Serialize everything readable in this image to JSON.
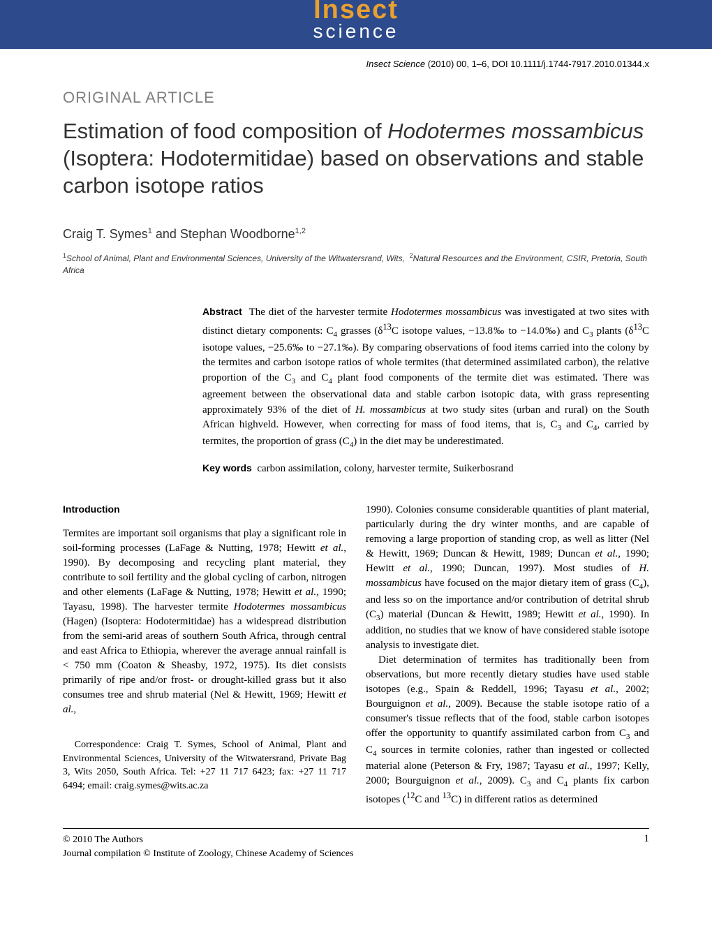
{
  "header": {
    "logo_top": "Insect",
    "logo_bottom": "science",
    "citation_journal": "Insect Science",
    "citation_year": "(2010) 00, 1–6, DOI 10.1111/j.1744-7917.2010.01344.x"
  },
  "article": {
    "type": "ORIGINAL ARTICLE",
    "title_pre": "Estimation of food composition of ",
    "title_species": "Hodotermes mossambicus",
    "title_post": " (Isoptera: Hodotermitidae) based on observations and stable carbon isotope ratios",
    "authors_html": "Craig T. Symes<sup>1</sup> and Stephan Woodborne<sup>1,2</sup>",
    "affiliations_html": "<sup>1</sup>School of Animal, Plant and Environmental Sciences, University of the Witwatersrand, Wits, &nbsp;<sup>2</sup>Natural Resources and the Environment, CSIR, Pretoria, South Africa"
  },
  "abstract": {
    "label": "Abstract",
    "text": "The diet of the harvester termite <span class=\"species-inline\">Hodotermes mossambicus</span> was investigated at two sites with distinct dietary components: C<sub>4</sub> grasses (δ<sup>13</sup>C isotope values, −13.8‰ to −14.0‰) and C<sub>3</sub> plants (δ<sup>13</sup>C isotope values, −25.6‰ to −27.1‰). By comparing observations of food items carried into the colony by the termites and carbon isotope ratios of whole termites (that determined assimilated carbon), the relative proportion of the C<sub>3</sub> and C<sub>4</sub> plant food components of the termite diet was estimated. There was agreement between the observational data and stable carbon isotopic data, with grass representing approximately 93% of the diet of <span class=\"species-inline\">H. mossambicus</span> at two study sites (urban and rural) on the South African highveld. However, when correcting for mass of food items, that is, C<sub>3</sub> and C<sub>4</sub>, carried by termites, the proportion of grass (C<sub>4</sub>) in the diet may be underestimated."
  },
  "keywords": {
    "label": "Key words",
    "text": "carbon assimilation, colony, harvester termite, Suikerbosrand"
  },
  "body": {
    "intro_heading": "Introduction",
    "col1_p1": "Termites are important soil organisms that play a significant role in soil-forming processes (LaFage & Nutting, 1978; Hewitt <span class=\"species-inline\">et al.</span>, 1990). By decomposing and recycling plant material, they contribute to soil fertility and the global cycling of carbon, nitrogen and other elements (LaFage & Nutting, 1978; Hewitt <span class=\"species-inline\">et al.</span>, 1990; Tayasu, 1998). The harvester termite <span class=\"species-inline\">Hodotermes mossambicus</span> (Hagen) (Isoptera: Hodotermitidae) has a widespread distribution from the semi-arid areas of southern South Africa, through central and east Africa to Ethiopia, wherever the average annual rainfall is < 750 mm (Coaton & Sheasby, 1972, 1975). Its diet consists primarily of ripe and/or frost- or drought-killed grass but it also consumes tree and shrub material (Nel & Hewitt, 1969; Hewitt <span class=\"species-inline\">et al.</span>,",
    "col2_p1": "1990). Colonies consume considerable quantities of plant material, particularly during the dry winter months, and are capable of removing a large proportion of standing crop, as well as litter (Nel & Hewitt, 1969; Duncan & Hewitt, 1989; Duncan <span class=\"species-inline\">et al.</span>, 1990; Hewitt <span class=\"species-inline\">et al.</span>, 1990; Duncan, 1997). Most studies of <span class=\"species-inline\">H. mossambicus</span> have focused on the major dietary item of grass (C<sub>4</sub>), and less so on the importance and/or contribution of detrital shrub (C<sub>3</sub>) material (Duncan & Hewitt, 1989; Hewitt <span class=\"species-inline\">et al.</span>, 1990). In addition, no studies that we know of have considered stable isotope analysis to investigate diet.",
    "col2_p2": "Diet determination of termites has traditionally been from observations, but more recently dietary studies have used stable isotopes (e.g., Spain & Reddell, 1996; Tayasu <span class=\"species-inline\">et al.</span>, 2002; Bourguignon <span class=\"species-inline\">et al.</span>, 2009). Because the stable isotope ratio of a consumer's tissue reflects that of the food, stable carbon isotopes offer the opportunity to quantify assimilated carbon from C<sub>3</sub> and C<sub>4</sub> sources in termite colonies, rather than ingested or collected material alone (Peterson & Fry, 1987; Tayasu <span class=\"species-inline\">et al.</span>, 1997; Kelly, 2000; Bourguignon <span class=\"species-inline\">et al.</span>, 2009). C<sub>3</sub> and C<sub>4</sub> plants fix carbon isotopes (<sup>12</sup>C and <sup>13</sup>C) in different ratios as determined"
  },
  "correspondence": "Correspondence: Craig T. Symes, School of Animal, Plant and Environmental Sciences, University of the Witwatersrand, Private Bag 3, Wits 2050, South Africa. Tel: +27 11 717 6423; fax: +27 11 717 6494; email: craig.symes@wits.ac.za",
  "footer": {
    "copyright1": "© 2010 The Authors",
    "copyright2": "Journal compilation © Institute of Zoology, Chinese Academy of Sciences",
    "page_num": "1"
  },
  "colors": {
    "banner_bg": "#2c4a8c",
    "logo_orange": "#e8a030",
    "logo_white": "#ffffff",
    "gray_text": "#808080",
    "body_text": "#000000"
  }
}
